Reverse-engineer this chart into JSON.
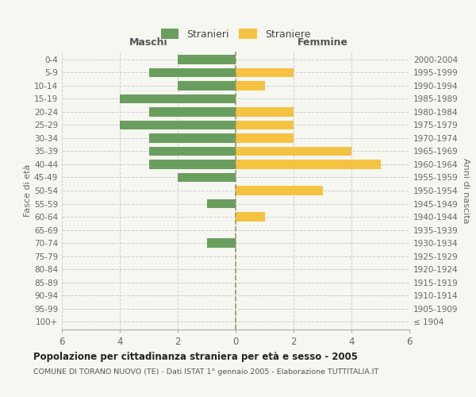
{
  "age_groups": [
    "100+",
    "95-99",
    "90-94",
    "85-89",
    "80-84",
    "75-79",
    "70-74",
    "65-69",
    "60-64",
    "55-59",
    "50-54",
    "45-49",
    "40-44",
    "35-39",
    "30-34",
    "25-29",
    "20-24",
    "15-19",
    "10-14",
    "5-9",
    "0-4"
  ],
  "birth_years": [
    "≤ 1904",
    "1905-1909",
    "1910-1914",
    "1915-1919",
    "1920-1924",
    "1925-1929",
    "1930-1934",
    "1935-1939",
    "1940-1944",
    "1945-1949",
    "1950-1954",
    "1955-1959",
    "1960-1964",
    "1965-1969",
    "1970-1974",
    "1975-1979",
    "1980-1984",
    "1985-1989",
    "1990-1994",
    "1995-1999",
    "2000-2004"
  ],
  "males": [
    0,
    0,
    0,
    0,
    0,
    0,
    1,
    0,
    0,
    1,
    0,
    2,
    3,
    3,
    3,
    4,
    3,
    4,
    2,
    3,
    2
  ],
  "females": [
    0,
    0,
    0,
    0,
    0,
    0,
    0,
    0,
    1,
    0,
    3,
    0,
    5,
    4,
    2,
    2,
    2,
    0,
    1,
    2,
    0
  ],
  "color_male": "#6a9e5e",
  "color_female": "#f5c242",
  "color_zero_line": "#999966",
  "xlim": 6,
  "xlabel_left": "Maschi",
  "xlabel_right": "Femmine",
  "ylabel_left": "Fasce di età",
  "ylabel_right": "Anni di nascita",
  "legend_male": "Stranieri",
  "legend_female": "Straniere",
  "title": "Popolazione per cittadinanza straniera per età e sesso - 2005",
  "subtitle": "COMUNE DI TORANO NUOVO (TE) - Dati ISTAT 1° gennaio 2005 - Elaborazione TUTTITALIA.IT",
  "bg_color": "#f7f7f2",
  "grid_color": "#cccccc"
}
